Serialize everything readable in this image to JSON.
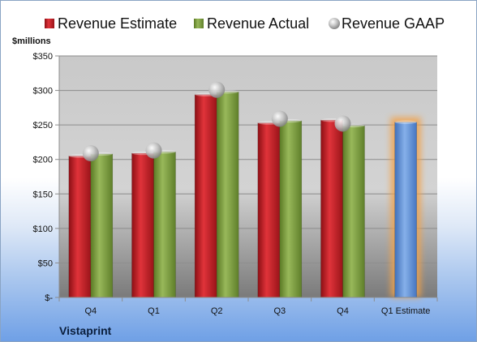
{
  "chart_data": {
    "type": "bar",
    "title": "",
    "company": "Vistaprint",
    "unit_label": "$millions",
    "categories": [
      "Q4",
      "Q1",
      "Q2",
      "Q3",
      "Q4",
      "Q1 Estimate"
    ],
    "series": [
      {
        "name": "Revenue Estimate",
        "kind": "bar",
        "color": "#cc1f27",
        "values": [
          205,
          209,
          294,
          253,
          257,
          null
        ]
      },
      {
        "name": "Revenue Actual",
        "kind": "bar",
        "color": "#7fa03c",
        "values": [
          208,
          211,
          298,
          256,
          249,
          null
        ]
      },
      {
        "name": "Revenue GAAP",
        "kind": "marker",
        "color": "#b8b8b8",
        "values": [
          209,
          213,
          301,
          259,
          252,
          null
        ]
      },
      {
        "name": "",
        "kind": "bar",
        "color": "#5b8fd6",
        "glow": "#f2a24a",
        "values": [
          null,
          null,
          null,
          null,
          null,
          254
        ]
      }
    ],
    "ylim": [
      0,
      350
    ],
    "yticks": [
      0,
      50,
      100,
      150,
      200,
      250,
      300,
      350
    ],
    "ytick_labels": [
      "$-",
      "$50",
      "$100",
      "$150",
      "$200",
      "$250",
      "$300",
      "$350"
    ],
    "grid": true,
    "legend_position": "top"
  }
}
